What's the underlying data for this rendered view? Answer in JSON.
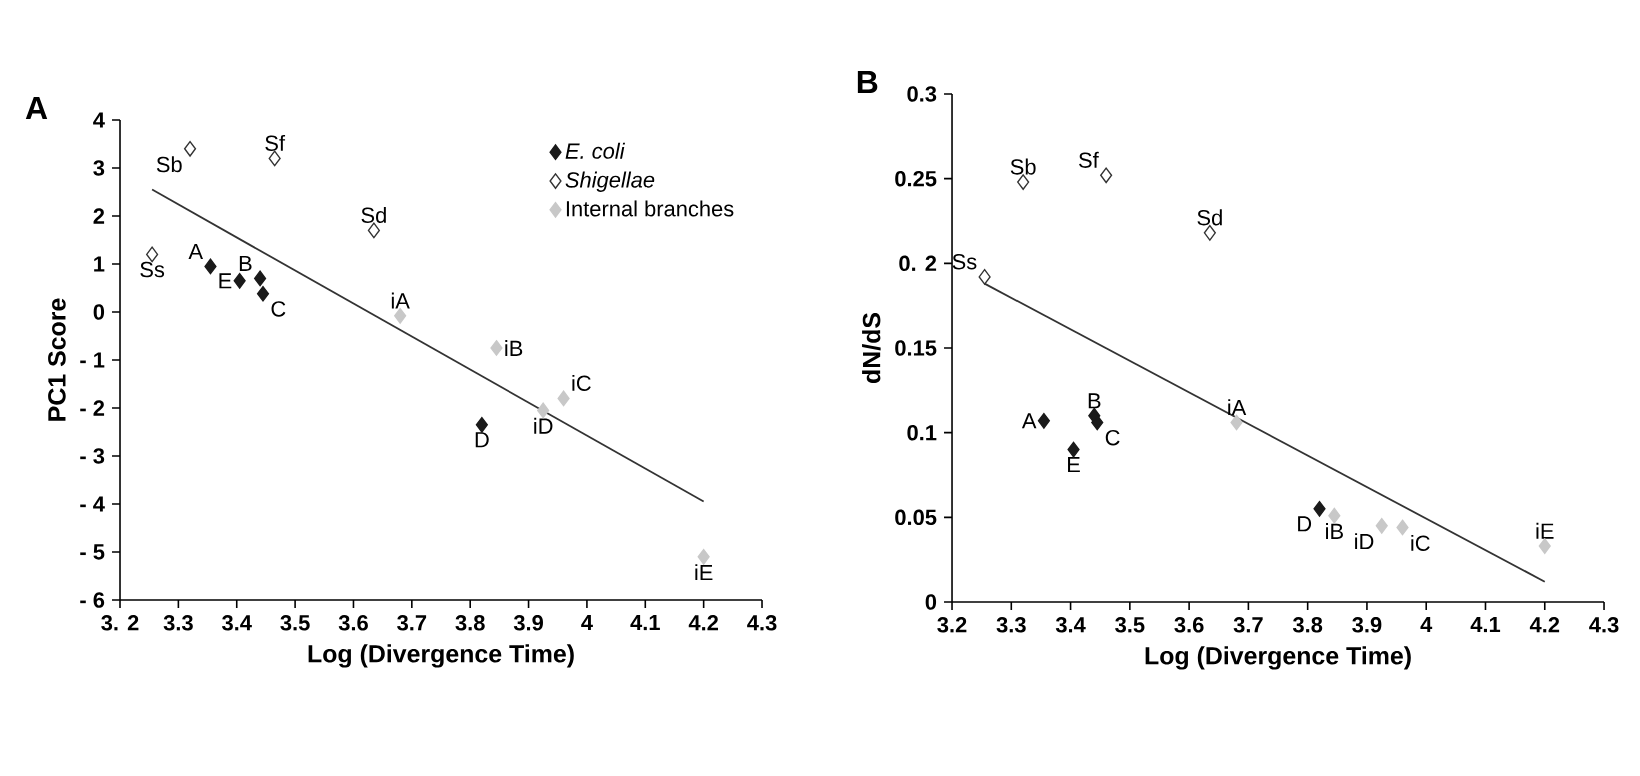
{
  "chart_data": [
    {
      "type": "scatter",
      "title": "A",
      "xlabel": "Log (Divergence Time)",
      "ylabel": "PC1 Score",
      "marker": "diamond",
      "legend": "top right",
      "xlim": [
        3.2,
        4.3
      ],
      "ylim": [
        -6,
        4
      ],
      "xticks": [
        {
          "value": 3.2,
          "label": "3. 2"
        },
        3.3,
        3.4,
        3.5,
        3.6,
        3.7,
        3.8,
        3.9,
        4,
        4.1,
        4.2,
        4.3
      ],
      "yticks": [
        {
          "value": -6,
          "label": "- 6"
        },
        {
          "value": -5,
          "label": "- 5"
        },
        {
          "value": -4,
          "label": "- 4"
        },
        {
          "value": -3,
          "label": "- 3"
        },
        {
          "value": -2,
          "label": "- 2"
        },
        {
          "value": -1,
          "label": "- 1"
        },
        0,
        1,
        2,
        3,
        4
      ],
      "series": [
        {
          "name": "*E. coli*",
          "color": "#1a1a1a",
          "x": [
            3.355,
            3.405,
            3.44,
            3.445,
            3.82
          ],
          "values": [
            0.95,
            0.65,
            0.7,
            0.38,
            -2.35
          ]
        },
        {
          "name": "*Shigellae*",
          "color": "#ffffff",
          "x": [
            3.255,
            3.32,
            3.465,
            3.635
          ],
          "values": [
            1.2,
            3.4,
            3.2,
            1.7
          ]
        },
        {
          "name": "Internal branches",
          "color": "#c8c8c8",
          "x": [
            3.68,
            3.845,
            3.96,
            3.925,
            4.2
          ],
          "values": [
            -0.08,
            -0.75,
            -1.8,
            -2.05,
            -5.1
          ]
        },
        {
          "type": "line",
          "color": "#333333",
          "marker": "none",
          "x": [
            3.255,
            4.2
          ],
          "values": [
            2.55,
            -3.95
          ]
        }
      ],
      "annotations": [
        {
          "text": "A",
          "x": 3.355,
          "y": 0.95
        },
        {
          "text": "E",
          "x": 3.405,
          "y": 0.65
        },
        {
          "text": "B",
          "x": 3.44,
          "y": 0.7
        },
        {
          "text": "C",
          "x": 3.445,
          "y": 0.38
        },
        {
          "text": "D",
          "x": 3.82,
          "y": -2.35
        },
        {
          "text": "Ss",
          "x": 3.255,
          "y": 1.2
        },
        {
          "text": "Sb",
          "x": 3.32,
          "y": 3.4
        },
        {
          "text": "Sf",
          "x": 3.465,
          "y": 3.2
        },
        {
          "text": "Sd",
          "x": 3.635,
          "y": 1.7
        },
        {
          "text": "iA",
          "x": 3.68,
          "y": -0.08
        },
        {
          "text": "iB",
          "x": 3.845,
          "y": -0.75
        },
        {
          "text": "iC",
          "x": 3.96,
          "y": -1.8
        },
        {
          "text": "iD",
          "x": 3.925,
          "y": -2.05
        },
        {
          "text": "iE",
          "x": 4.2,
          "y": -5.1
        }
      ]
    },
    {
      "type": "scatter",
      "title": "B",
      "xlabel": "Log (Divergence Time)",
      "ylabel": "dN/dS",
      "marker": "diamond",
      "legend": false,
      "xlim": [
        3.2,
        4.3
      ],
      "ylim": [
        0,
        0.3
      ],
      "xticks": [
        3.2,
        3.3,
        3.4,
        3.5,
        3.6,
        3.7,
        3.8,
        3.9,
        4,
        4.1,
        4.2,
        4.3
      ],
      "yticks": [
        0,
        0.05,
        0.1,
        0.15,
        {
          "value": 0.2,
          "label": "0. 2"
        },
        0.25,
        0.3
      ],
      "series": [
        {
          "color": "#1a1a1a",
          "x": [
            3.355,
            3.405,
            3.44,
            3.445,
            3.82
          ],
          "values": [
            0.107,
            0.09,
            0.11,
            0.106,
            0.055
          ]
        },
        {
          "color": "#ffffff",
          "x": [
            3.255,
            3.32,
            3.46,
            3.635
          ],
          "values": [
            0.192,
            0.248,
            0.252,
            0.218
          ]
        },
        {
          "color": "#c8c8c8",
          "x": [
            3.68,
            3.845,
            3.96,
            3.925,
            4.2
          ],
          "values": [
            0.106,
            0.051,
            0.044,
            0.045,
            0.033
          ]
        },
        {
          "type": "line",
          "color": "#333333",
          "marker": "none",
          "x": [
            3.255,
            4.2
          ],
          "values": [
            0.188,
            0.012
          ]
        }
      ],
      "annotations": [
        {
          "text": "A",
          "x": 3.355,
          "y": 0.107
        },
        {
          "text": "E",
          "x": 3.405,
          "y": 0.09
        },
        {
          "text": "B",
          "x": 3.44,
          "y": 0.11
        },
        {
          "text": "C",
          "x": 3.445,
          "y": 0.106
        },
        {
          "text": "D",
          "x": 3.82,
          "y": 0.055
        },
        {
          "text": "Ss",
          "x": 3.255,
          "y": 0.192
        },
        {
          "text": "Sb",
          "x": 3.32,
          "y": 0.248
        },
        {
          "text": "Sf",
          "x": 3.46,
          "y": 0.252
        },
        {
          "text": "Sd",
          "x": 3.635,
          "y": 0.218
        },
        {
          "text": "iA",
          "x": 3.68,
          "y": 0.106
        },
        {
          "text": "iB",
          "x": 3.845,
          "y": 0.051
        },
        {
          "text": "iC",
          "x": 3.96,
          "y": 0.044
        },
        {
          "text": "iD",
          "x": 3.925,
          "y": 0.045
        },
        {
          "text": "iE",
          "x": 4.2,
          "y": 0.033
        }
      ]
    }
  ]
}
